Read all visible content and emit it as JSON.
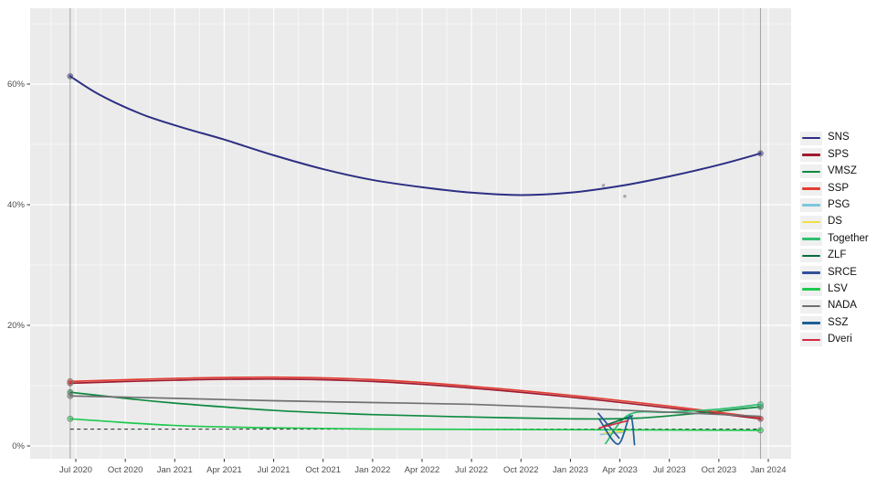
{
  "chart_data": {
    "type": "line",
    "title": "",
    "xlabel": "",
    "ylabel": "",
    "grid": "on",
    "legend_position": "right",
    "panel_background": "#ebebeb",
    "gridline_color": "#ffffff",
    "axis_text_color": "#4d4d4d",
    "x_axis": {
      "ticks": [
        {
          "label": "Jul 2020",
          "date": "2020-07-01"
        },
        {
          "label": "Oct 2020",
          "date": "2020-10-01"
        },
        {
          "label": "Jan 2021",
          "date": "2021-01-01"
        },
        {
          "label": "Apr 2021",
          "date": "2021-04-01"
        },
        {
          "label": "Jul 2021",
          "date": "2021-07-01"
        },
        {
          "label": "Oct 2021",
          "date": "2021-10-01"
        },
        {
          "label": "Jan 2022",
          "date": "2022-01-01"
        },
        {
          "label": "Apr 2022",
          "date": "2022-04-01"
        },
        {
          "label": "Jul 2022",
          "date": "2022-07-01"
        },
        {
          "label": "Oct 2022",
          "date": "2022-10-01"
        },
        {
          "label": "Jan 2023",
          "date": "2023-01-01"
        },
        {
          "label": "Apr 2023",
          "date": "2023-04-01"
        },
        {
          "label": "Jul 2023",
          "date": "2023-07-01"
        },
        {
          "label": "Oct 2023",
          "date": "2023-10-01"
        },
        {
          "label": "Jan 2024",
          "date": "2024-01-01"
        }
      ]
    },
    "y_axis": {
      "ticks": [
        {
          "label": "0%",
          "value": 0
        },
        {
          "label": "20%",
          "value": 20
        },
        {
          "label": "40%",
          "value": 40
        },
        {
          "label": "60%",
          "value": 60
        }
      ],
      "minor_tick_values": [
        10,
        30,
        50,
        70
      ],
      "range": [
        -2.5,
        73
      ]
    },
    "threshold_line": {
      "value": 2.8,
      "style": "dashed",
      "color": "#3b3b3b"
    },
    "election_date_lines": {
      "dates": [
        "2020-06-21",
        "2023-12-17"
      ],
      "color": "#a2a2a2"
    },
    "series": [
      {
        "name": "SNS",
        "color": "#2d2f83",
        "marker_start": true,
        "marker_end": true,
        "points": [
          [
            "2020-06-21",
            61.3
          ],
          [
            "2020-08-15",
            58.2
          ],
          [
            "2020-11-01",
            55.0
          ],
          [
            "2021-01-15",
            52.8
          ],
          [
            "2021-04-01",
            50.8
          ],
          [
            "2021-07-01",
            48.2
          ],
          [
            "2021-10-01",
            45.9
          ],
          [
            "2022-01-01",
            44.1
          ],
          [
            "2022-04-01",
            42.9
          ],
          [
            "2022-07-01",
            42.0
          ],
          [
            "2022-10-01",
            41.6
          ],
          [
            "2023-01-01",
            42.0
          ],
          [
            "2023-04-01",
            43.1
          ],
          [
            "2023-07-01",
            44.7
          ],
          [
            "2023-10-01",
            46.6
          ],
          [
            "2023-12-17",
            48.5
          ]
        ]
      },
      {
        "name": "SPS",
        "color": "#a01a2f",
        "marker_start": true,
        "marker_end": true,
        "points": [
          [
            "2020-06-21",
            10.4
          ],
          [
            "2021-01-01",
            10.9
          ],
          [
            "2021-07-01",
            11.1
          ],
          [
            "2022-01-01",
            10.7
          ],
          [
            "2022-07-01",
            9.6
          ],
          [
            "2023-01-01",
            8.1
          ],
          [
            "2023-07-01",
            6.3
          ],
          [
            "2023-12-17",
            4.5
          ]
        ]
      },
      {
        "name": "VMSZ",
        "color": "#0e8a40",
        "marker_start": true,
        "marker_end": true,
        "points": [
          [
            "2020-06-21",
            8.9
          ],
          [
            "2020-10-01",
            7.9
          ],
          [
            "2021-01-01",
            7.1
          ],
          [
            "2021-07-01",
            5.9
          ],
          [
            "2022-01-01",
            5.2
          ],
          [
            "2022-07-01",
            4.8
          ],
          [
            "2023-01-01",
            4.5
          ],
          [
            "2023-05-01",
            4.6
          ],
          [
            "2023-09-01",
            5.5
          ],
          [
            "2023-12-17",
            6.5
          ]
        ]
      },
      {
        "name": "SSP",
        "color": "#e23d32",
        "marker_start": true,
        "marker_end": false,
        "points": [
          [
            "2020-06-21",
            10.7
          ],
          [
            "2021-01-01",
            11.2
          ],
          [
            "2021-07-01",
            11.4
          ],
          [
            "2022-01-01",
            11.0
          ],
          [
            "2022-07-01",
            9.9
          ],
          [
            "2023-01-01",
            8.4
          ],
          [
            "2023-07-01",
            6.6
          ],
          [
            "2023-12-17",
            4.7
          ]
        ]
      },
      {
        "name": "PSG",
        "color": "#7fc6df",
        "marker_start": false,
        "marker_end": false,
        "points": [
          [
            "2023-02-26",
            1.9
          ],
          [
            "2023-04-10",
            2.3
          ]
        ]
      },
      {
        "name": "DS",
        "color": "#f2dd45",
        "marker_start": false,
        "marker_end": false,
        "points": [
          [
            "2023-03-02",
            2.1
          ],
          [
            "2023-04-12",
            2.5
          ]
        ]
      },
      {
        "name": "Together",
        "color": "#2fbe71",
        "marker_start": false,
        "marker_end": true,
        "points": [
          [
            "2023-03-05",
            0.4
          ],
          [
            "2023-04-18",
            5.2
          ],
          [
            "2023-07-01",
            5.6
          ],
          [
            "2023-10-01",
            6.1
          ],
          [
            "2023-12-17",
            6.9
          ]
        ]
      },
      {
        "name": "ZLF",
        "color": "#0b6b3c",
        "marker_start": false,
        "marker_end": false,
        "points": [
          [
            "2023-03-01",
            3.3
          ],
          [
            "2023-04-24",
            5.0
          ]
        ]
      },
      {
        "name": "SRCE",
        "color": "#31509c",
        "marker_start": false,
        "marker_end": false,
        "points": [
          [
            "2023-02-22",
            5.4
          ],
          [
            "2023-03-30",
            1.3
          ]
        ]
      },
      {
        "name": "LSV",
        "color": "#1fc94f",
        "marker_start": true,
        "marker_end": true,
        "points": [
          [
            "2020-06-21",
            4.5
          ],
          [
            "2021-01-01",
            3.4
          ],
          [
            "2021-07-01",
            3.0
          ],
          [
            "2022-01-01",
            2.8
          ],
          [
            "2022-07-01",
            2.75
          ],
          [
            "2023-01-01",
            2.7
          ],
          [
            "2023-07-01",
            2.65
          ],
          [
            "2023-12-17",
            2.6
          ]
        ]
      },
      {
        "name": "NADA",
        "color": "#707070",
        "marker_start": true,
        "marker_end": false,
        "points": [
          [
            "2020-06-21",
            8.3
          ],
          [
            "2021-01-01",
            7.9
          ],
          [
            "2021-07-01",
            7.5
          ],
          [
            "2022-01-01",
            7.2
          ],
          [
            "2022-07-01",
            6.9
          ],
          [
            "2023-01-01",
            6.3
          ],
          [
            "2023-07-01",
            5.6
          ],
          [
            "2023-12-17",
            4.9
          ]
        ]
      },
      {
        "name": "SSZ",
        "color": "#1e6096",
        "marker_start": false,
        "marker_end": false,
        "points": [
          [
            "2023-02-24",
            4.4
          ],
          [
            "2023-03-28",
            0.3
          ],
          [
            "2023-04-20",
            5.0
          ],
          [
            "2023-04-28",
            0.2
          ]
        ]
      },
      {
        "name": "Dveri",
        "color": "#d42a45",
        "marker_start": false,
        "marker_end": false,
        "points": [
          [
            "2023-02-24",
            3.0
          ],
          [
            "2023-04-16",
            4.2
          ]
        ]
      }
    ],
    "scatter_points": {
      "color": "#9b9b9b",
      "points": [
        [
          "2023-03-01",
          43.2
        ],
        [
          "2023-04-10",
          41.4
        ]
      ]
    }
  }
}
